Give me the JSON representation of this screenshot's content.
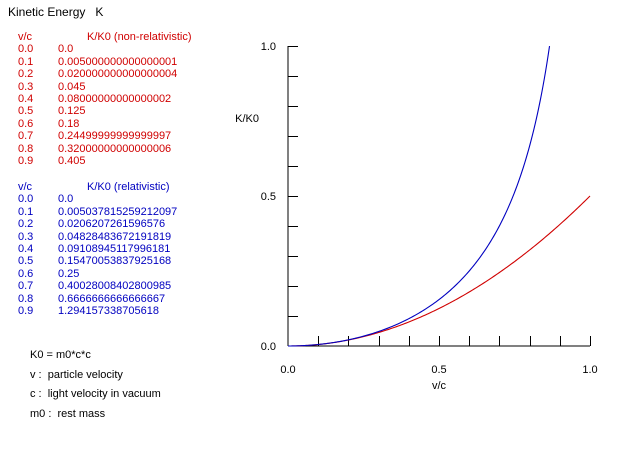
{
  "title": "Kinetic Energy   K",
  "non_relativistic": {
    "header_v": "v/c",
    "header_k": "K/K0  (non-relativistic)",
    "rows": [
      {
        "v": "0.0",
        "k": "0.0"
      },
      {
        "v": "0.1",
        "k": "0.005000000000000001"
      },
      {
        "v": "0.2",
        "k": "0.020000000000000004"
      },
      {
        "v": "0.3",
        "k": "0.045"
      },
      {
        "v": "0.4",
        "k": "0.08000000000000002"
      },
      {
        "v": "0.5",
        "k": "0.125"
      },
      {
        "v": "0.6",
        "k": "0.18"
      },
      {
        "v": "0.7",
        "k": "0.24499999999999997"
      },
      {
        "v": "0.8",
        "k": "0.32000000000000006"
      },
      {
        "v": "0.9",
        "k": "0.405"
      }
    ]
  },
  "relativistic": {
    "header_v": "v/c",
    "header_k": "K/K0  (relativistic)",
    "rows": [
      {
        "v": "0.0",
        "k": "0.0"
      },
      {
        "v": "0.1",
        "k": "0.005037815259212097"
      },
      {
        "v": "0.2",
        "k": "0.0206207261596576"
      },
      {
        "v": "0.3",
        "k": "0.04828483672191819"
      },
      {
        "v": "0.4",
        "k": "0.09108945117996181"
      },
      {
        "v": "0.5",
        "k": "0.15470053837925168"
      },
      {
        "v": "0.6",
        "k": "0.25"
      },
      {
        "v": "0.7",
        "k": "0.40028008402800985"
      },
      {
        "v": "0.8",
        "k": "0.6666666666666667"
      },
      {
        "v": "0.9",
        "k": "1.294157338705618"
      }
    ]
  },
  "notes": [
    "K0 = m0*c*c",
    "v :  particle velocity",
    "c :  light velocity in vacuum",
    "m0 :  rest mass"
  ],
  "colors": {
    "non_relativistic": "#d00000",
    "relativistic": "#0000c0",
    "axis": "#000000"
  },
  "chart_data": {
    "type": "line",
    "title": "",
    "xlabel": "v/c",
    "ylabel": "K/K0",
    "xlim": [
      0,
      1
    ],
    "ylim": [
      0,
      1
    ],
    "x_ticks": [
      "0.0",
      "0.5",
      "1.0"
    ],
    "y_ticks": [
      "0.0",
      "0.5",
      "1.0"
    ],
    "x_minor_step": 0.1,
    "y_minor_step": 0.1,
    "grid": false,
    "legend": "none",
    "series": [
      {
        "color": "#0000c0",
        "formula": "1/sqrt(1-x^2) - 1",
        "x": [
          0,
          0.1,
          0.2,
          0.3,
          0.4,
          0.5,
          0.6,
          0.7,
          0.8,
          0.866
        ],
        "values": [
          0,
          0.00504,
          0.02062,
          0.04828,
          0.09109,
          0.1547,
          0.25,
          0.40028,
          0.66667,
          1.0
        ]
      },
      {
        "color": "#d00000",
        "formula": "x^2 / 2",
        "x": [
          0,
          0.1,
          0.2,
          0.3,
          0.4,
          0.5,
          0.6,
          0.7,
          0.8,
          0.9,
          1.0
        ],
        "values": [
          0,
          0.005,
          0.02,
          0.045,
          0.08,
          0.125,
          0.18,
          0.245,
          0.32,
          0.405,
          0.5
        ]
      }
    ]
  }
}
